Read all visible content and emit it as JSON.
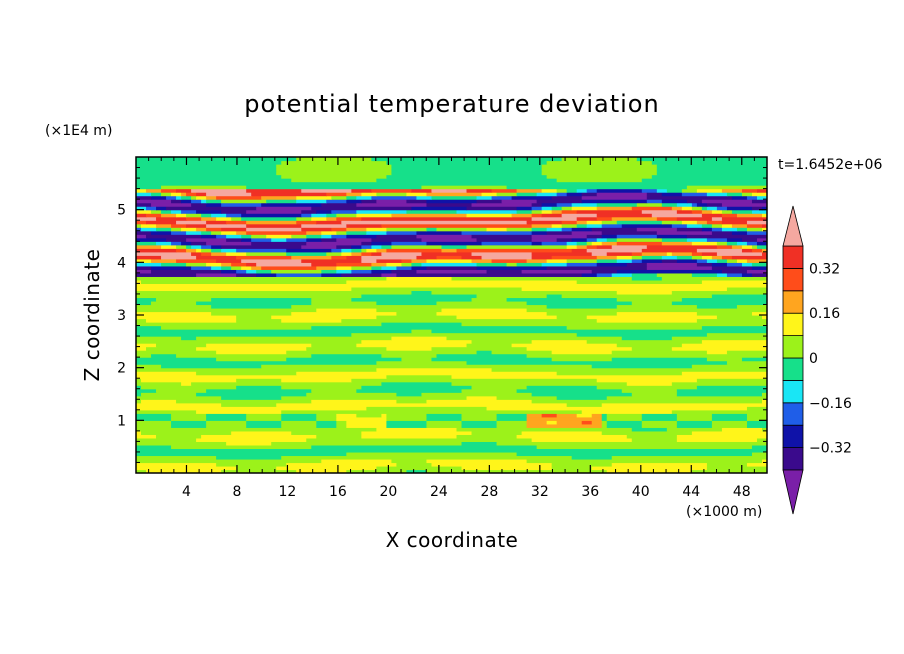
{
  "chart_data": {
    "type": "heatmap",
    "title": "potential temperature deviation",
    "xlabel": "X coordinate",
    "ylabel": "Z coordinate",
    "x_unit_label": "(×1000 m)",
    "y_unit_label": "(×1E4 m)",
    "time_label": "t=1.6452e+06",
    "xlim": [
      0,
      50
    ],
    "ylim": [
      0,
      6
    ],
    "x_ticks": [
      4,
      8,
      12,
      16,
      20,
      24,
      28,
      32,
      36,
      40,
      44,
      48
    ],
    "y_ticks": [
      1,
      2,
      3,
      4,
      5
    ],
    "colorbar": {
      "levels": [
        -0.4,
        -0.32,
        -0.24,
        -0.16,
        -0.08,
        0,
        0.08,
        0.16,
        0.24,
        0.32,
        0.4
      ],
      "tick_labels": [
        "0.32",
        "0.16",
        "0",
        "−0.16",
        "−0.32"
      ],
      "tick_values": [
        0.32,
        0.16,
        0,
        -0.16,
        -0.32
      ],
      "colors": [
        "#7a1fa8",
        "#3a0a8c",
        "#0f12a8",
        "#1f5ee8",
        "#19e6f5",
        "#16e08a",
        "#9cf21a",
        "#fff51a",
        "#ffa51f",
        "#ff4d1a",
        "#f03025",
        "#f5a8a0"
      ]
    },
    "zones": [
      {
        "z_range": [
          0,
          1
        ],
        "values_range": [
          -0.08,
          0.08
        ],
        "dominant": "near zero"
      },
      {
        "z_range": [
          1,
          3.7
        ],
        "values_range": [
          -0.08,
          0.16
        ],
        "dominant": "near zero, layered"
      },
      {
        "z_range": [
          3.7,
          5.4
        ],
        "values_range": [
          -0.4,
          0.4
        ],
        "dominant": "strong alternating bands"
      },
      {
        "z_range": [
          5.4,
          6
        ],
        "values_range": [
          -0.08,
          0.08
        ],
        "dominant": "near zero"
      }
    ]
  }
}
